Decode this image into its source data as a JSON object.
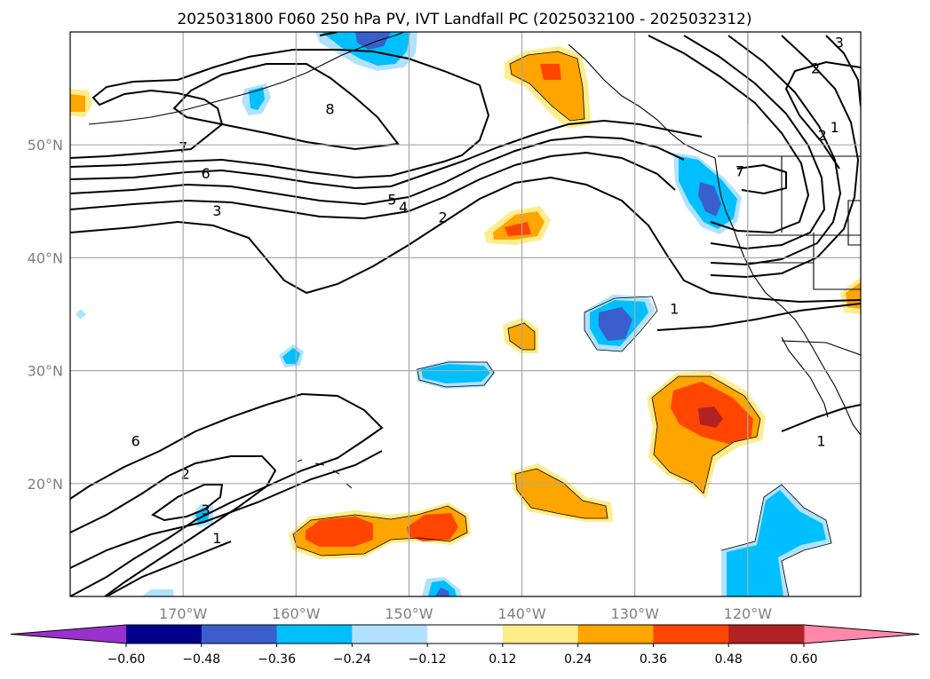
{
  "figure": {
    "title": "2025031800 F060 250 hPa PV, IVT Landfall PC (2025032100 - 2025032312)"
  },
  "map": {
    "lon_range": [
      -180,
      -110
    ],
    "lat_range": [
      10,
      60
    ],
    "lon_ticks": [
      {
        "lon": -170,
        "label": "170°W"
      },
      {
        "lon": -160,
        "label": "160°W"
      },
      {
        "lon": -150,
        "label": "150°W"
      },
      {
        "lon": -140,
        "label": "140°W"
      },
      {
        "lon": -130,
        "label": "130°W"
      },
      {
        "lon": -120,
        "label": "120°W"
      }
    ],
    "lat_ticks": [
      {
        "lat": 50,
        "label": "50°N"
      },
      {
        "lat": 40,
        "label": "40°N"
      },
      {
        "lat": 30,
        "label": "30°N"
      },
      {
        "lat": 20,
        "label": "20°N"
      }
    ],
    "grid": true,
    "contour_labels": [
      {
        "text": "6",
        "lon": -174.2,
        "lat": 23.8
      },
      {
        "text": "8",
        "lon": -157,
        "lat": 53.2
      },
      {
        "text": "7",
        "lon": -170,
        "lat": 49.8
      },
      {
        "text": "6",
        "lon": -168,
        "lat": 47.5
      },
      {
        "text": "3",
        "lon": -167,
        "lat": 44.2
      },
      {
        "text": "5",
        "lon": -151.5,
        "lat": 45.2
      },
      {
        "text": "4",
        "lon": -150.5,
        "lat": 44.5
      },
      {
        "text": "2",
        "lon": -147,
        "lat": 43.6
      },
      {
        "text": "2",
        "lon": -169.8,
        "lat": 20.9
      },
      {
        "text": "3",
        "lon": -168,
        "lat": 17.7
      },
      {
        "text": "1",
        "lon": -167,
        "lat": 15.2
      },
      {
        "text": "1",
        "lon": -126.5,
        "lat": 35.5
      },
      {
        "text": "1",
        "lon": -113.5,
        "lat": 23.8
      },
      {
        "text": "2",
        "lon": -114,
        "lat": 56.8
      },
      {
        "text": "1",
        "lon": -112.3,
        "lat": 51.6
      },
      {
        "text": "2",
        "lon": -113.4,
        "lat": 50.9
      },
      {
        "text": "3",
        "lon": -111.9,
        "lat": 59.1
      },
      {
        "text": "7",
        "lon": -120.7,
        "lat": 47.7
      }
    ]
  },
  "colorbar": {
    "levels": [
      -0.6,
      -0.48,
      -0.36,
      -0.24,
      -0.12,
      0.12,
      0.24,
      0.36,
      0.48,
      0.6
    ],
    "tick_labels": [
      "−0.60",
      "−0.48",
      "−0.36",
      "−0.24",
      "−0.12",
      "0.12",
      "0.24",
      "0.36",
      "0.48",
      "0.60"
    ],
    "colors": [
      "#9932cc",
      "#00008b",
      "#3a5fcd",
      "#00bfff",
      "#b0e2ff",
      "#ffffff",
      "#ffec8b",
      "#ffa500",
      "#ff4500",
      "#b22222",
      "#ff88aa"
    ],
    "extend": "both"
  },
  "chart_data": {
    "type": "heatmap",
    "title": "2025031800 F060 250 hPa PV, IVT Landfall PC (2025032100 - 2025032312)",
    "xlabel": "",
    "ylabel": "",
    "xlim": [
      -180,
      -110
    ],
    "ylim": [
      10,
      60
    ],
    "contour_field": "250 hPa PV",
    "contour_levels": [
      1,
      2,
      3,
      4,
      5,
      6,
      7,
      8
    ],
    "shaded_field": "IVT Landfall PC",
    "shade_levels": [
      -0.6,
      -0.48,
      -0.36,
      -0.24,
      -0.12,
      0.12,
      0.24,
      0.36,
      0.48,
      0.6
    ],
    "shaded_regions": [
      {
        "lon": -153,
        "lat": 59.2,
        "max": -0.36
      },
      {
        "lon": -166.5,
        "lat": 54.5,
        "max": -0.24
      },
      {
        "lon": -138.5,
        "lat": 56.2,
        "max": 0.36
      },
      {
        "lon": -179,
        "lat": 53.6,
        "max": 0.24
      },
      {
        "lon": -124.5,
        "lat": 45.5,
        "max": -0.48
      },
      {
        "lon": -140.5,
        "lat": 42.6,
        "max": 0.36
      },
      {
        "lon": -139.8,
        "lat": 33.2,
        "max": 0.24
      },
      {
        "lon": -131,
        "lat": 34.2,
        "max": -0.48
      },
      {
        "lon": -159.5,
        "lat": 31.5,
        "max": -0.24
      },
      {
        "lon": -148.5,
        "lat": 29.8,
        "max": -0.24
      },
      {
        "lon": -179,
        "lat": 35,
        "max": -0.12
      },
      {
        "lon": -124.5,
        "lat": 25.7,
        "max": 0.48
      },
      {
        "lon": -136.5,
        "lat": 19.2,
        "max": 0.24
      },
      {
        "lon": -154.5,
        "lat": 15.8,
        "max": 0.36
      },
      {
        "lon": -147,
        "lat": 16.5,
        "max": 0.36
      },
      {
        "lon": -168,
        "lat": 17.5,
        "max": -0.24
      },
      {
        "lon": -120,
        "lat": 14.5,
        "max": -0.24
      },
      {
        "lon": -146.5,
        "lat": 10.6,
        "max": -0.36
      },
      {
        "lon": -110.5,
        "lat": 37,
        "max": 0.24
      },
      {
        "lon": -173,
        "lat": 10.2,
        "max": -0.24
      }
    ]
  }
}
